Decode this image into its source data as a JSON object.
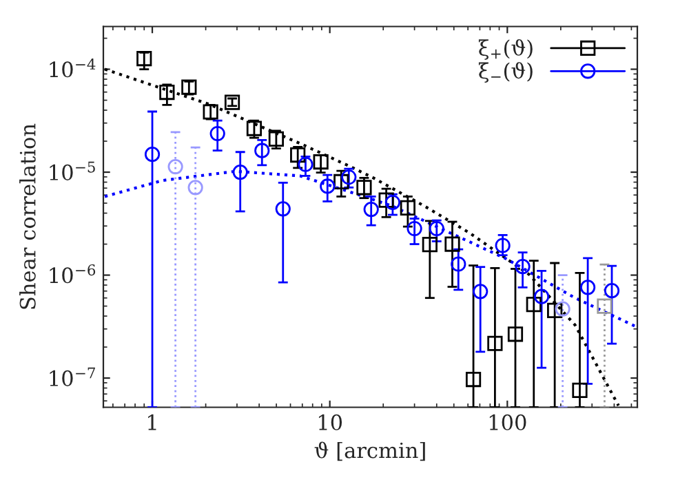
{
  "chart_data": {
    "type": "scatter",
    "xlabel": "ϑ [arcmin]",
    "ylabel": "Shear correlation",
    "log": "xy",
    "xlim": [
      0.53,
      540
    ],
    "ylim": [
      5.2e-08,
      0.00026
    ],
    "xticks": [
      1,
      10,
      100
    ],
    "yticks": [
      {
        "value": 1e-07,
        "label": "10$^{−7}$"
      },
      {
        "value": 1e-06,
        "label": "10$^{−6}$"
      },
      {
        "value": 1e-05,
        "label": "10$^{−5}$"
      },
      {
        "value": 0.0001,
        "label": "10$^{−4}$"
      }
    ],
    "legend": "top right",
    "grid": false,
    "series": [
      {
        "name": "ξ$_{+}$(ϑ)",
        "marker": "square",
        "color": "#000000",
        "x": [
          0.9,
          1.21,
          1.61,
          2.13,
          2.82,
          3.75,
          4.99,
          6.6,
          8.9,
          11.6,
          15.6,
          20.8,
          27.5,
          36.6,
          49,
          64.4,
          85.2,
          111,
          141,
          185,
          256
        ],
        "values": [
          0.000127,
          5.97e-05,
          6.7e-05,
          3.85e-05,
          4.77e-05,
          2.66e-05,
          2.1e-05,
          1.47e-05,
          1.26e-05,
          8.07e-06,
          7.1e-06,
          5.35e-06,
          4.5e-06,
          1.98e-06,
          2e-06,
          9.7e-08,
          2.17e-07,
          2.67e-07,
          5.19e-07,
          4.54e-07,
          7.6e-08
        ],
        "errors": [
          [
            0.0001,
            0.000145
          ],
          [
            4.5e-05,
            7.1e-05
          ],
          [
            5.7e-05,
            7.6e-05
          ],
          [
            3.27e-05,
            4.5e-05
          ],
          [
            4.4e-05,
            5.2e-05
          ],
          [
            2.16e-05,
            3.17e-05
          ],
          [
            1.7e-05,
            2.53e-05
          ],
          [
            1.1e-05,
            1.76e-05
          ],
          [
            9.9e-06,
            1.46e-05
          ],
          [
            5.8e-06,
            1.03e-05
          ],
          [
            5.6e-06,
            8.8e-06
          ],
          [
            3.66e-06,
            6.9e-06
          ],
          [
            2.96e-06,
            5.8e-06
          ],
          [
            6e-07,
            3.36e-06
          ],
          [
            7.7e-07,
            3.3e-06
          ],
          [
            5.2e-08,
            1.24e-06
          ],
          [
            5.2e-08,
            1.17e-06
          ],
          [
            5.2e-08,
            1.15e-06
          ],
          [
            5.2e-08,
            1.38e-06
          ],
          [
            5.2e-08,
            1.31e-06
          ],
          [
            5.2e-08,
            1.05e-06
          ]
        ]
      },
      {
        "name": "ξ$_{−}$(ϑ)",
        "marker": "circle",
        "color": "#0000ff",
        "x": [
          1.0,
          2.33,
          3.13,
          4.15,
          5.45,
          7.3,
          9.7,
          12.8,
          17.1,
          22.6,
          30,
          40,
          53,
          70.5,
          94.2,
          122,
          156,
          284,
          388
        ],
        "values": [
          1.49e-05,
          2.37e-05,
          1e-05,
          1.62e-05,
          4.4e-06,
          1.19e-05,
          7.3e-06,
          8.95e-06,
          4.35e-06,
          5.08e-06,
          2.83e-06,
          2.83e-06,
          1.28e-06,
          6.93e-07,
          1.94e-06,
          1.21e-06,
          6.2e-07,
          7.6e-07,
          7.06e-07
        ],
        "errors": [
          [
            5.2e-08,
            3.88e-05
          ],
          [
            1.62e-05,
            3.17e-05
          ],
          [
            4.16e-06,
            1.57e-05
          ],
          [
            1.17e-05,
            2.05e-05
          ],
          [
            8.5e-07,
            7.9e-06
          ],
          [
            9.2e-06,
            1.42e-05
          ],
          [
            5.2e-06,
            9.4e-06
          ],
          [
            7.1e-06,
            1.08e-05
          ],
          [
            3.05e-06,
            5.8e-06
          ],
          [
            3.85e-06,
            6.1e-06
          ],
          [
            2e-06,
            3.54e-06
          ],
          [
            2.13e-06,
            3.4e-06
          ],
          [
            7.2e-07,
            1.78e-06
          ],
          [
            1.8e-07,
            1.2e-06
          ],
          [
            1.56e-06,
            2.45e-06
          ],
          [
            7.6e-07,
            1.66e-06
          ],
          [
            1.26e-07,
            1.1e-06
          ],
          [
            8.8e-08,
            1.46e-06
          ],
          [
            2.16e-07,
            1.23e-06
          ]
        ]
      },
      {
        "marker": "square",
        "color": "#999999",
        "line_style": "dotted",
        "x": [
          353
        ],
        "values": [
          5e-07
        ],
        "errors": [
          [
            5.2e-08,
            1.27e-06
          ]
        ]
      },
      {
        "marker": "circle",
        "color": "#9999ff",
        "line_style": "dotted",
        "x": [
          1.35,
          1.75,
          205
        ],
        "values": [
          1.13e-05,
          7.1e-06,
          4.7e-07
        ],
        "errors": [
          [
            5.2e-08,
            2.45e-05
          ],
          [
            5.2e-08,
            1.74e-05
          ],
          [
            5.2e-08,
            1e-06
          ]
        ]
      },
      {
        "type": "line",
        "line_style": "dotted",
        "color": "#000000",
        "x": [
          0.54,
          2.07,
          6.8,
          13.1,
          17.6,
          33.8,
          61.5,
          133,
          241,
          423
        ],
        "values": [
          0.0001,
          4.6e-05,
          1.9e-05,
          1.13e-05,
          8.8e-06,
          4.73e-06,
          2.56e-06,
          1.01e-06,
          3.27e-07,
          5.4e-08
        ]
      },
      {
        "type": "line",
        "line_style": "dotted",
        "color": "#0000ff",
        "x": [
          0.54,
          1.14,
          2.95,
          6.8,
          15.6,
          22.4,
          98.5,
          241,
          535
        ],
        "values": [
          5.8e-06,
          8.3e-06,
          1.02e-05,
          9.2e-06,
          5.8e-06,
          4.7e-06,
          1.44e-06,
          6e-07,
          3.14e-07
        ]
      }
    ]
  }
}
